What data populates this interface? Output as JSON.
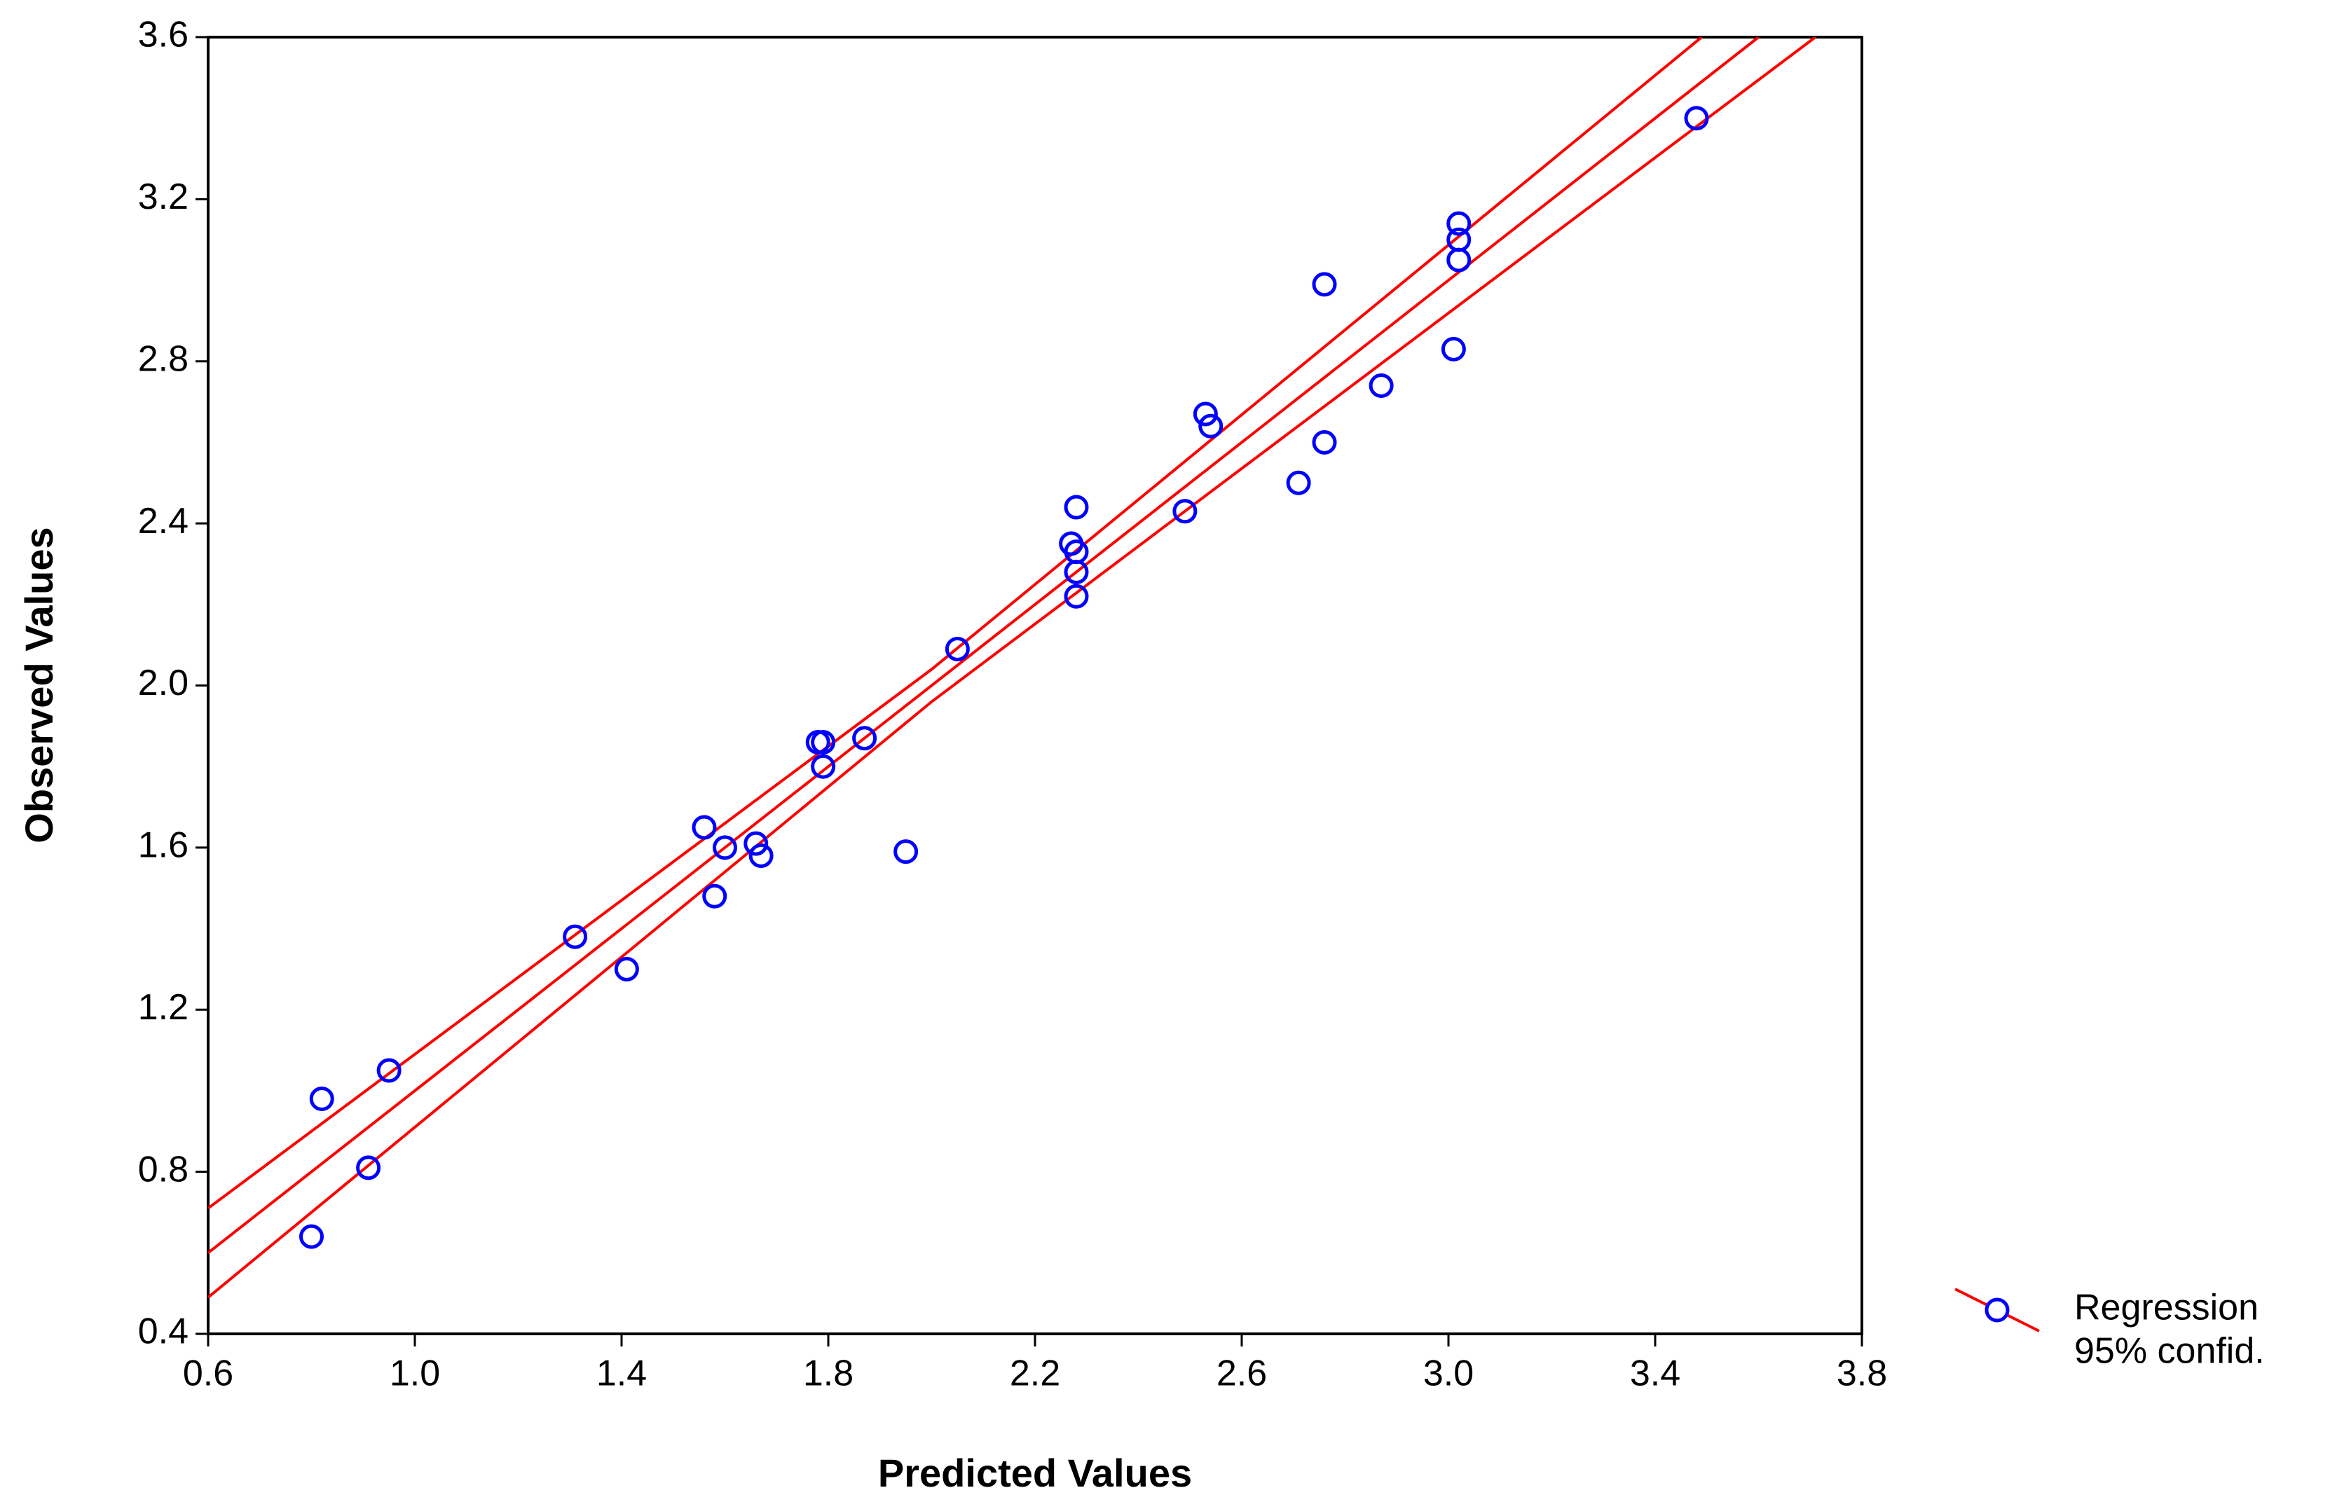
{
  "chart_data": {
    "type": "scatter",
    "xlabel": "Predicted Values",
    "ylabel": "Observed Values",
    "xlim": [
      0.6,
      3.8
    ],
    "ylim": [
      0.4,
      3.6
    ],
    "xticks": [
      0.6,
      {
        "value": 1,
        "label": "1.0"
      },
      1.4,
      1.8,
      2.2,
      2.6,
      {
        "value": 3,
        "label": "3.0"
      },
      3.4,
      3.8
    ],
    "yticks": [
      0.4,
      0.8,
      1.2,
      1.6,
      {
        "value": 2,
        "label": "2.0"
      },
      2.4,
      2.8,
      3.2,
      3.6
    ],
    "points": {
      "color": "#0000ff",
      "x": [
        0.8,
        0.82,
        0.91,
        0.95,
        1.31,
        1.41,
        1.56,
        1.58,
        1.6,
        1.66,
        1.67,
        1.78,
        1.79,
        1.79,
        1.87,
        1.95,
        2.05,
        2.27,
        2.28,
        2.28,
        2.28,
        2.28,
        2.49,
        2.53,
        2.54,
        2.71,
        2.76,
        2.76,
        2.87,
        3.01,
        3.02,
        3.02,
        3.02,
        3.48
      ],
      "values": [
        0.64,
        0.98,
        0.81,
        1.05,
        1.38,
        1.3,
        1.65,
        1.48,
        1.6,
        1.61,
        1.58,
        1.86,
        1.86,
        1.8,
        1.87,
        1.59,
        2.09,
        2.35,
        2.44,
        2.28,
        2.33,
        2.22,
        2.43,
        2.67,
        2.64,
        2.5,
        2.99,
        2.6,
        2.74,
        2.83,
        3.14,
        3.1,
        3.05,
        3.4
      ]
    },
    "series": [
      {
        "name": "Regression",
        "color": "#ff0000",
        "x": [
          0.6,
          3.6
        ],
        "values": [
          0.6,
          3.6
        ]
      },
      {
        "name": "95% confid.",
        "color": "#ff0000",
        "x": [
          0.6,
          2.0,
          3.49
        ],
        "values": [
          0.71,
          2.04,
          3.6
        ]
      },
      {
        "color": "#ff0000",
        "x": [
          0.6,
          2.0,
          3.71
        ],
        "values": [
          0.49,
          1.96,
          3.6
        ]
      }
    ]
  }
}
